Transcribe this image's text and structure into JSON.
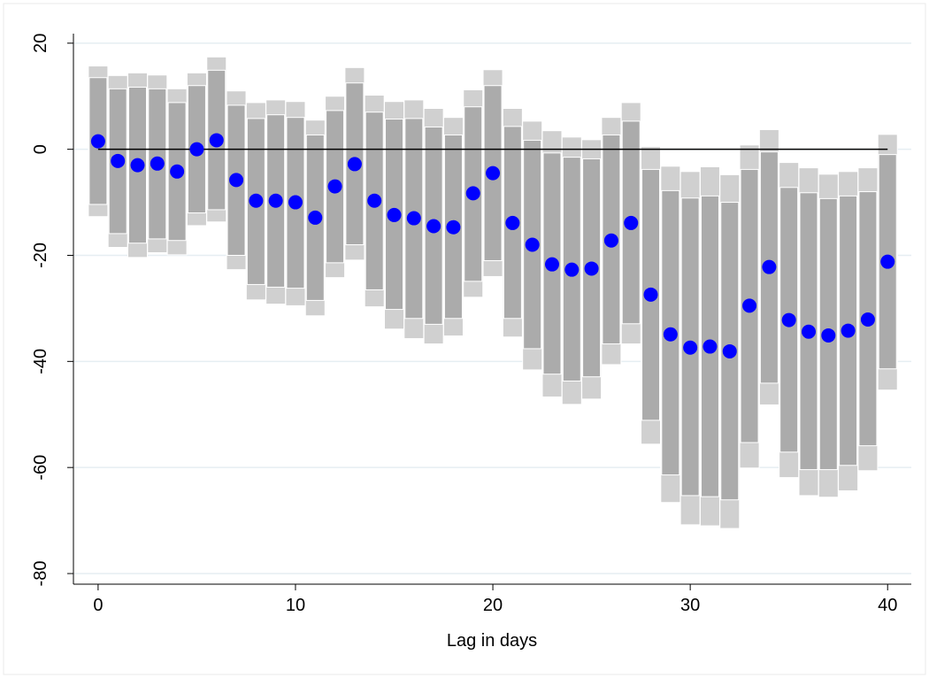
{
  "chart_data": {
    "type": "coefplot",
    "xlabel": "Lag in days",
    "x": [
      0,
      1,
      2,
      3,
      4,
      5,
      6,
      7,
      8,
      9,
      10,
      11,
      12,
      13,
      14,
      15,
      16,
      17,
      18,
      19,
      20,
      21,
      22,
      23,
      24,
      25,
      26,
      27,
      28,
      29,
      30,
      31,
      32,
      33,
      34,
      35,
      36,
      37,
      38,
      39,
      40
    ],
    "estimate": [
      1.5,
      -2.2,
      -3,
      -2.7,
      -4.2,
      0,
      1.7,
      -5.8,
      -9.7,
      -9.7,
      -10,
      -12.9,
      -7,
      -2.8,
      -9.7,
      -12.4,
      -13,
      -14.5,
      -14.7,
      -8.3,
      -4.5,
      -13.9,
      -18,
      -21.7,
      -22.7,
      -22.5,
      -17.2,
      -13.9,
      -27.4,
      -34.9,
      -37.4,
      -37.2,
      -38.1,
      -29.5,
      -22.2,
      -32.2,
      -34.4,
      -35.1,
      -34.2,
      -32.1,
      -21.2
    ],
    "ci95_high": [
      15.7,
      13.9,
      14.4,
      14,
      11.4,
      14.4,
      17.4,
      11,
      8.8,
      9.3,
      9,
      5.5,
      10,
      15.4,
      10.2,
      9,
      9.3,
      7.7,
      6,
      11.2,
      15,
      7.7,
      5.3,
      3.5,
      2.3,
      1.8,
      6,
      8.8,
      0.5,
      -3.2,
      -4.2,
      -3.3,
      -4.8,
      0.8,
      3.7,
      -2.5,
      -3.5,
      -4.7,
      -4.2,
      -3.5,
      2.8
    ],
    "ci95_low": [
      -12.7,
      -18.5,
      -20.4,
      -19.5,
      -19.9,
      -14.4,
      -13.7,
      -22.7,
      -28.4,
      -29.2,
      -29.5,
      -31.4,
      -24.2,
      -20.9,
      -29.7,
      -33.9,
      -35.7,
      -36.7,
      -35.2,
      -27.9,
      -24,
      -35.4,
      -41.6,
      -46.7,
      -48.1,
      -47.1,
      -40.6,
      -36.7,
      -55.6,
      -66.6,
      -70.8,
      -71,
      -71.5,
      -60.1,
      -48.2,
      -61.9,
      -65.3,
      -65.6,
      -64.4,
      -60.6,
      -45.4
    ],
    "ci90_high": [
      13.5,
      11.4,
      11.7,
      11.4,
      8.8,
      12,
      14.9,
      8.3,
      5.8,
      6.5,
      6,
      2.7,
      7.3,
      12.5,
      7,
      5.7,
      5.8,
      4.2,
      2.7,
      8,
      12,
      4.3,
      1.7,
      -0.7,
      -1.5,
      -1.8,
      2.7,
      5.3,
      -3.8,
      -7.8,
      -9.2,
      -8.8,
      -10,
      -3.8,
      -0.5,
      -7.2,
      -8.2,
      -9.3,
      -8.8,
      -8,
      -1
    ],
    "ci90_low": [
      -10.4,
      -15.9,
      -17.7,
      -16.9,
      -17.2,
      -12,
      -11.4,
      -20,
      -25.5,
      -26,
      -26.2,
      -28.5,
      -21.4,
      -18,
      -26.5,
      -30.2,
      -31.9,
      -33,
      -31.9,
      -24.9,
      -21,
      -31.9,
      -37.6,
      -42.4,
      -43.7,
      -42.9,
      -36.7,
      -32.9,
      -51.1,
      -61.4,
      -65.3,
      -65.5,
      -66.1,
      -55.3,
      -44.1,
      -57.1,
      -60.4,
      -60.4,
      -59.6,
      -55.9,
      -41.4
    ],
    "reference_line": 0,
    "point_color": "#0000ff",
    "ci95_color": "#d0d0d0",
    "ci90_color": "#ababab",
    "grid_color": "#e6eef2",
    "xlim": [
      -1.25,
      41.2
    ],
    "ylim": [
      -82,
      21.8
    ],
    "xticks": [
      0,
      10,
      20,
      30,
      40
    ],
    "yticks": [
      -80,
      -60,
      -40,
      -20,
      0,
      20
    ],
    "grid": true
  }
}
